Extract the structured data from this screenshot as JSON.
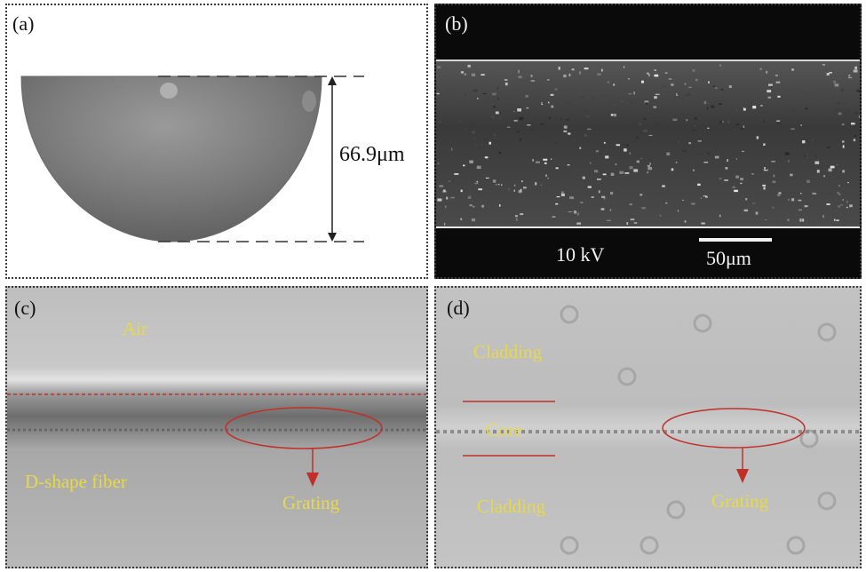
{
  "panels": {
    "a": {
      "label": "(a)",
      "measurement": "66.9μm"
    },
    "b": {
      "label": "(b)",
      "voltage": "10 kV",
      "scale_bar": "50μm"
    },
    "c": {
      "label": "(c)",
      "top_medium": "Air",
      "fiber": "D-shape fiber",
      "grating": "Grating"
    },
    "d": {
      "label": "(d)",
      "cladding_top": "Cladding",
      "core": "Core",
      "cladding_bottom": "Cladding",
      "grating": "Grating"
    }
  },
  "colors": {
    "label_yellow": "#e6d94a",
    "annotation_red": "#c0302a",
    "sem_background": "#0a0a0a"
  }
}
